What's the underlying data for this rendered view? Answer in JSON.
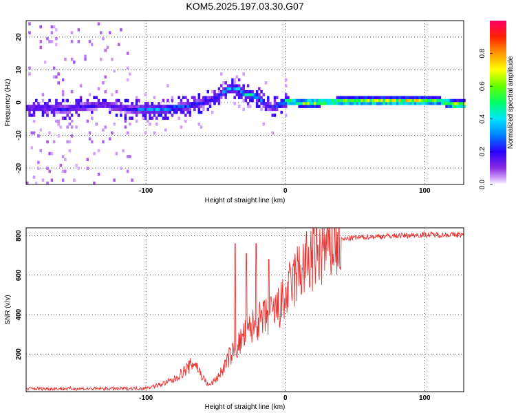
{
  "title": "KOM5.2025.197.03.30.G07",
  "chart_data": [
    {
      "type": "heatmap",
      "xlabel": "Height of straight line (km)",
      "ylabel": "Frequency (Hz)",
      "xlim": [
        -186,
        128
      ],
      "ylim": [
        -25,
        25
      ],
      "x_ticks": [
        -100,
        0,
        100
      ],
      "y_ticks": [
        -20,
        -10,
        0,
        10,
        20
      ],
      "grid": true,
      "colorbar": {
        "label": "Normalized spectral amplitude",
        "range": [
          0,
          1
        ],
        "ticks": [
          "0.0",
          "0.2",
          "0.4",
          "0.6",
          "0.8"
        ],
        "tick_values": [
          0,
          0.2,
          0.4,
          0.6,
          0.8
        ]
      },
      "ridge": {
        "x": [
          -186,
          -170,
          -160,
          -150,
          -140,
          -130,
          -120,
          -110,
          -100,
          -90,
          -80,
          -70,
          -60,
          -50,
          -45,
          -40,
          -35,
          -30,
          -25,
          -20,
          -15,
          -10,
          -5,
          0,
          10,
          20,
          40,
          60,
          80,
          100,
          110,
          115,
          120,
          128
        ],
        "freq": [
          -2,
          -2,
          -2.5,
          -2,
          -1.5,
          -1,
          -2,
          -2.5,
          -2.5,
          -2.5,
          -2,
          -1.5,
          -0.5,
          1,
          3,
          4,
          4,
          2,
          2,
          1,
          -1,
          -2,
          -1,
          0,
          -0.5,
          -0.5,
          0,
          0,
          0,
          0,
          0,
          -0.5,
          -1,
          -1
        ],
        "amplitude": [
          0.18,
          0.18,
          0.2,
          0.2,
          0.18,
          0.18,
          0.2,
          0.22,
          0.3,
          0.32,
          0.3,
          0.25,
          0.22,
          0.25,
          0.3,
          0.35,
          0.4,
          0.38,
          0.42,
          0.38,
          0.22,
          0.2,
          0.3,
          0.55,
          0.6,
          0.65,
          0.65,
          0.65,
          0.75,
          0.7,
          0.55,
          0.65,
          0.7,
          0.75
        ]
      }
    },
    {
      "type": "line",
      "xlabel": "Height of straight line (km)",
      "ylabel": "SNR (v/v)",
      "xlim": [
        -186,
        128
      ],
      "ylim": [
        10,
        840
      ],
      "x_ticks": [
        -100,
        0,
        100
      ],
      "y_ticks": [
        200,
        400,
        600,
        800
      ],
      "grid": true,
      "color": "#e8302e",
      "envelope": {
        "x": [
          -186,
          -120,
          -100,
          -90,
          -80,
          -70,
          -65,
          -60,
          -55,
          -50,
          -45,
          -40,
          -35,
          -30,
          -25,
          -20,
          -15,
          -10,
          -5,
          0,
          5,
          10,
          20,
          30,
          40,
          50,
          60,
          80,
          100,
          128
        ],
        "snr": [
          25,
          25,
          28,
          45,
          70,
          130,
          160,
          90,
          40,
          70,
          120,
          190,
          230,
          290,
          330,
          360,
          380,
          400,
          430,
          480,
          560,
          620,
          690,
          740,
          780,
          790,
          795,
          800,
          805,
          805
        ]
      },
      "spikes": [
        {
          "x": -36,
          "snr": 760
        },
        {
          "x": -28,
          "snr": 710
        },
        {
          "x": -21,
          "snr": 760
        },
        {
          "x": -12,
          "snr": 680
        }
      ]
    }
  ]
}
